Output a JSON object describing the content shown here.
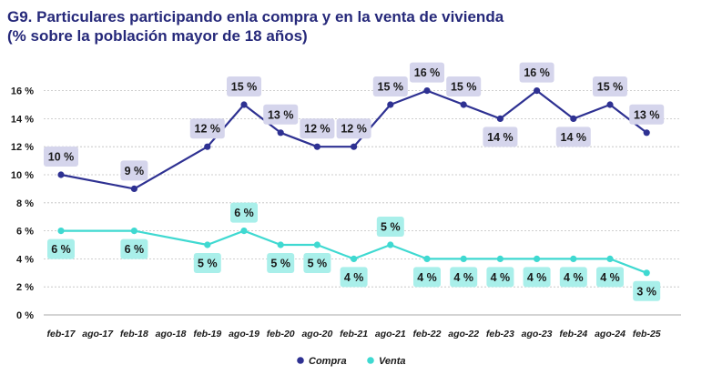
{
  "title_line1": "G9. Particulares participando enla compra y en la venta de vivienda",
  "title_line2": "(% sobre la población mayor de 18 años)",
  "colors": {
    "compra": "#2e3192",
    "venta": "#3fd9d1",
    "compra_label_bg": "#d5d5ec",
    "venta_label_bg": "#a9efea",
    "grid": "#bfbfbf",
    "title": "#26297a"
  },
  "chart_data": {
    "type": "line",
    "title": "G9. Particulares participando enla compra y en la venta de vivienda",
    "subtitle": "(% sobre la población mayor de 18 años)",
    "xlabel": "",
    "ylabel": "",
    "ylim": [
      0,
      16
    ],
    "yticks": [
      "0 %",
      "2 %",
      "4 %",
      "6 %",
      "8 %",
      "10 %",
      "12 %",
      "14 %",
      "16 %"
    ],
    "grid": true,
    "legend_position": "bottom",
    "categories": [
      "feb-17",
      "ago-17",
      "feb-18",
      "ago-18",
      "feb-19",
      "ago-19",
      "feb-20",
      "ago-20",
      "feb-21",
      "ago-21",
      "feb-22",
      "ago-22",
      "feb-23",
      "ago-23",
      "feb-24",
      "ago-24",
      "feb-25"
    ],
    "series": [
      {
        "name": "Compra",
        "values": [
          10,
          null,
          9,
          null,
          12,
          15,
          13,
          12,
          12,
          15,
          16,
          15,
          14,
          16,
          14,
          15,
          13
        ]
      },
      {
        "name": "Venta",
        "values": [
          6,
          null,
          6,
          null,
          5,
          6,
          5,
          5,
          4,
          5,
          4,
          4,
          4,
          4,
          4,
          4,
          3
        ]
      }
    ]
  }
}
